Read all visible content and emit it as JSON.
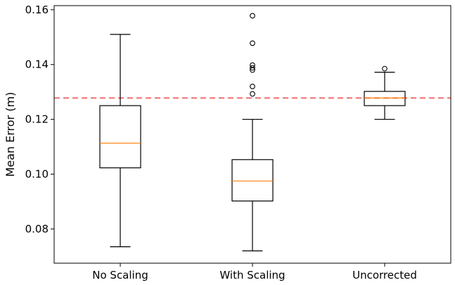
{
  "chart_data": {
    "type": "box",
    "title": "",
    "xlabel": "",
    "ylabel": "Mean Error (m)",
    "ylim": [
      0.0675,
      0.1615
    ],
    "yticks": [
      0.08,
      0.1,
      0.12,
      0.14,
      0.16
    ],
    "ytick_labels": [
      "0.08",
      "0.10",
      "0.12",
      "0.14",
      "0.16"
    ],
    "categories": [
      "No Scaling",
      "With Scaling",
      "Uncorrected"
    ],
    "boxes": [
      {
        "whislo": 0.0735,
        "q1": 0.1023,
        "med": 0.1113,
        "q3": 0.125,
        "whishi": 0.151,
        "fliers": []
      },
      {
        "whislo": 0.072,
        "q1": 0.0902,
        "med": 0.0975,
        "q3": 0.1053,
        "whishi": 0.12,
        "fliers": [
          0.1578,
          0.1478,
          0.1398,
          0.1388,
          0.138,
          0.132,
          0.1293
        ]
      },
      {
        "whislo": 0.12,
        "q1": 0.125,
        "med": 0.1278,
        "q3": 0.1302,
        "whishi": 0.1372,
        "fliers": [
          0.1385
        ]
      }
    ],
    "reference_line": {
      "value": 0.1278,
      "style": "dashed",
      "color": "#f07070"
    },
    "colors": {
      "box": "#000000",
      "median": "#ff7f0e"
    },
    "grid": false,
    "legend": "none"
  }
}
